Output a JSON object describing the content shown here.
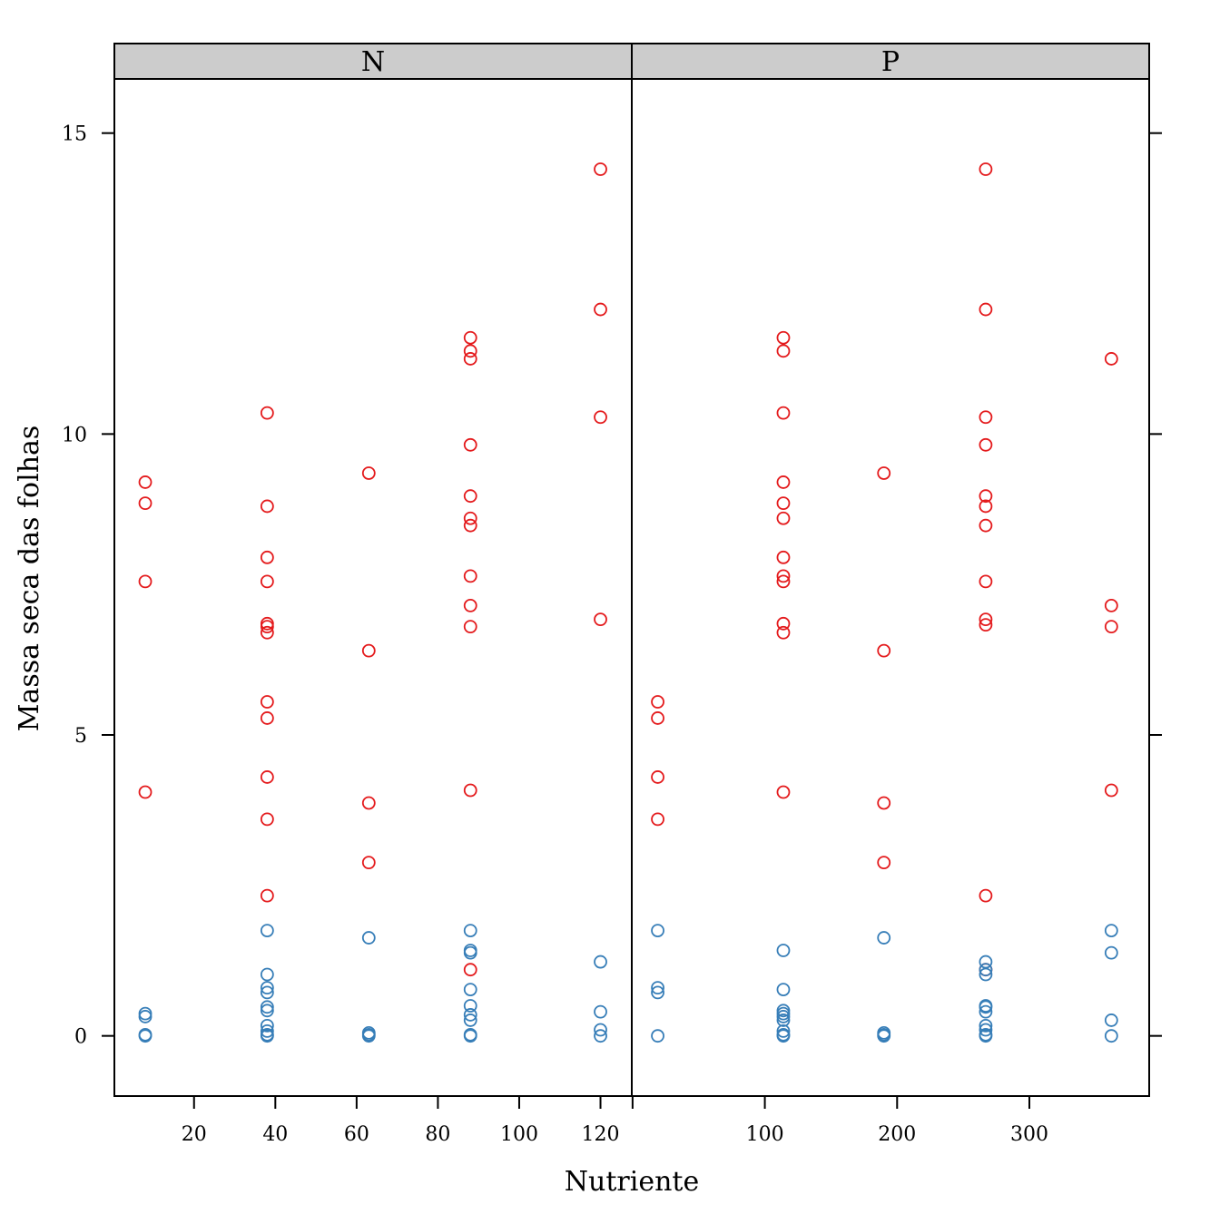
{
  "chart_data": {
    "type": "scatter",
    "xlabel": "Nutriente",
    "ylabel": "Massa seca das folhas",
    "ylim": [
      -1,
      15.9
    ],
    "y_ticks": [
      0,
      5,
      10,
      15
    ],
    "grid": false,
    "colors": {
      "red_series": "#e41a1c",
      "blue_series": "#377eb8",
      "strip": "#cccccc"
    },
    "panels": [
      {
        "strip": "N",
        "xlim": [
          0.4,
          127.7
        ],
        "x_ticks": [
          20,
          40,
          60,
          80,
          100,
          120
        ],
        "series": [
          {
            "color": "#e41a1c",
            "points": [
              [
                8,
                9.2
              ],
              [
                8,
                8.85
              ],
              [
                8,
                7.55
              ],
              [
                8,
                4.05
              ],
              [
                38,
                10.35
              ],
              [
                38,
                8.8
              ],
              [
                38,
                7.95
              ],
              [
                38,
                7.55
              ],
              [
                38,
                6.85
              ],
              [
                38,
                6.8
              ],
              [
                38,
                6.7
              ],
              [
                38,
                5.55
              ],
              [
                38,
                5.28
              ],
              [
                38,
                4.3
              ],
              [
                38,
                3.6
              ],
              [
                38,
                2.33
              ],
              [
                63,
                9.35
              ],
              [
                63,
                6.4
              ],
              [
                63,
                3.87
              ],
              [
                63,
                2.88
              ],
              [
                88,
                11.6
              ],
              [
                88,
                11.38
              ],
              [
                88,
                11.25
              ],
              [
                88,
                9.82
              ],
              [
                88,
                8.97
              ],
              [
                88,
                8.6
              ],
              [
                88,
                8.48
              ],
              [
                88,
                7.64
              ],
              [
                88,
                7.15
              ],
              [
                88,
                6.8
              ],
              [
                88,
                4.08
              ],
              [
                88,
                1.1
              ],
              [
                120,
                14.4
              ],
              [
                120,
                12.07
              ],
              [
                120,
                10.28
              ],
              [
                120,
                6.92
              ]
            ]
          },
          {
            "color": "#377eb8",
            "points": [
              [
                8,
                0.37
              ],
              [
                8,
                0.32
              ],
              [
                8,
                0.02
              ],
              [
                8,
                0.0
              ],
              [
                38,
                1.75
              ],
              [
                38,
                1.02
              ],
              [
                38,
                0.8
              ],
              [
                38,
                0.72
              ],
              [
                38,
                0.48
              ],
              [
                38,
                0.42
              ],
              [
                38,
                0.17
              ],
              [
                38,
                0.08
              ],
              [
                38,
                0.02
              ],
              [
                38,
                0.0
              ],
              [
                63,
                1.63
              ],
              [
                63,
                0.05
              ],
              [
                63,
                0.02
              ],
              [
                63,
                0.0
              ],
              [
                88,
                1.75
              ],
              [
                88,
                1.42
              ],
              [
                88,
                1.38
              ],
              [
                88,
                0.77
              ],
              [
                88,
                0.5
              ],
              [
                88,
                0.35
              ],
              [
                88,
                0.26
              ],
              [
                88,
                0.02
              ],
              [
                88,
                0.0
              ],
              [
                120,
                1.23
              ],
              [
                120,
                0.4
              ],
              [
                120,
                0.1
              ],
              [
                120,
                0.0
              ]
            ]
          }
        ]
      },
      {
        "strip": "P",
        "xlim": [
          -0.6,
          390.6
        ],
        "x_ticks": [
          0,
          100,
          200,
          300
        ],
        "x_tick_labels": [
          "",
          "100",
          "200",
          "300"
        ],
        "series": [
          {
            "color": "#e41a1c",
            "points": [
              [
                19,
                5.55
              ],
              [
                19,
                5.28
              ],
              [
                19,
                4.3
              ],
              [
                19,
                3.6
              ],
              [
                114,
                11.6
              ],
              [
                114,
                11.38
              ],
              [
                114,
                10.35
              ],
              [
                114,
                9.2
              ],
              [
                114,
                8.85
              ],
              [
                114,
                8.6
              ],
              [
                114,
                7.95
              ],
              [
                114,
                7.64
              ],
              [
                114,
                7.55
              ],
              [
                114,
                6.85
              ],
              [
                114,
                6.7
              ],
              [
                114,
                4.05
              ],
              [
                190,
                9.35
              ],
              [
                190,
                6.4
              ],
              [
                190,
                3.87
              ],
              [
                190,
                2.88
              ],
              [
                267,
                14.4
              ],
              [
                267,
                12.07
              ],
              [
                267,
                10.28
              ],
              [
                267,
                9.82
              ],
              [
                267,
                8.97
              ],
              [
                267,
                8.8
              ],
              [
                267,
                8.48
              ],
              [
                267,
                7.55
              ],
              [
                267,
                6.92
              ],
              [
                267,
                6.83
              ],
              [
                267,
                2.33
              ],
              [
                267,
                1.1
              ],
              [
                362,
                11.25
              ],
              [
                362,
                7.15
              ],
              [
                362,
                6.8
              ],
              [
                362,
                4.08
              ]
            ]
          },
          {
            "color": "#377eb8",
            "points": [
              [
                19,
                1.75
              ],
              [
                19,
                0.8
              ],
              [
                19,
                0.72
              ],
              [
                19,
                0.0
              ],
              [
                114,
                1.42
              ],
              [
                114,
                0.77
              ],
              [
                114,
                0.42
              ],
              [
                114,
                0.37
              ],
              [
                114,
                0.32
              ],
              [
                114,
                0.26
              ],
              [
                114,
                0.08
              ],
              [
                114,
                0.02
              ],
              [
                114,
                0.0
              ],
              [
                190,
                1.63
              ],
              [
                190,
                0.05
              ],
              [
                190,
                0.02
              ],
              [
                190,
                0.0
              ],
              [
                267,
                1.23
              ],
              [
                267,
                1.1
              ],
              [
                267,
                1.02
              ],
              [
                267,
                0.5
              ],
              [
                267,
                0.48
              ],
              [
                267,
                0.4
              ],
              [
                267,
                0.17
              ],
              [
                267,
                0.1
              ],
              [
                267,
                0.02
              ],
              [
                267,
                0.0
              ],
              [
                362,
                1.75
              ],
              [
                362,
                1.38
              ],
              [
                362,
                0.26
              ],
              [
                362,
                0.0
              ]
            ]
          }
        ]
      }
    ]
  }
}
